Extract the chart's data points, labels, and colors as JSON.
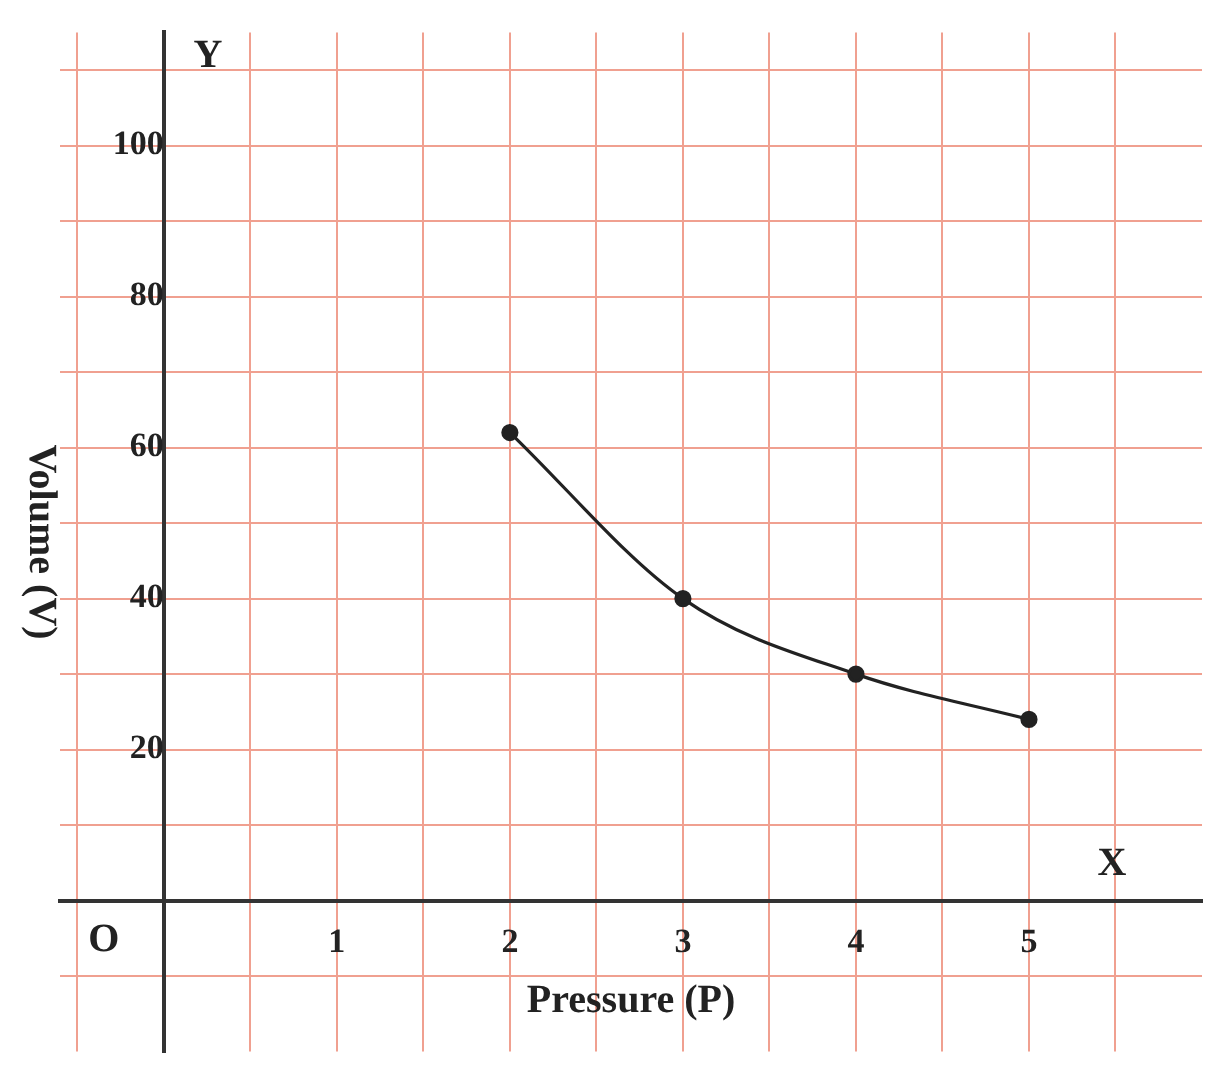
{
  "chart_data": {
    "type": "line",
    "xlabel": "Pressure (P)",
    "ylabel": "Volume (V)",
    "x": [
      2,
      3,
      4,
      5
    ],
    "values": [
      62,
      40,
      30,
      24
    ],
    "color": "#222222",
    "marker": "circle",
    "line_style": "solid",
    "grid": true,
    "legend": false,
    "xlim": [
      -0.6,
      6
    ],
    "ylim": [
      -20,
      115
    ],
    "xticks": [
      {
        "value": -0.5,
        "label": null
      },
      {
        "value": 0.5,
        "label": null
      },
      1,
      {
        "value": 1.5,
        "label": null
      },
      2,
      {
        "value": 2.5,
        "label": null
      },
      3,
      {
        "value": 3.5,
        "label": null
      },
      4,
      {
        "value": 4.5,
        "label": null
      },
      5,
      {
        "value": 5.5,
        "label": null
      }
    ],
    "yticks": [
      {
        "value": -10,
        "label": null
      },
      {
        "value": 10,
        "label": null
      },
      20,
      {
        "value": 30,
        "label": null
      },
      40,
      {
        "value": 50,
        "label": null
      },
      60,
      {
        "value": 70,
        "label": null
      },
      80,
      {
        "value": 90,
        "label": null
      },
      100,
      {
        "value": 110,
        "label": null
      }
    ],
    "annotations": [
      "X",
      "Y",
      "O"
    ]
  }
}
